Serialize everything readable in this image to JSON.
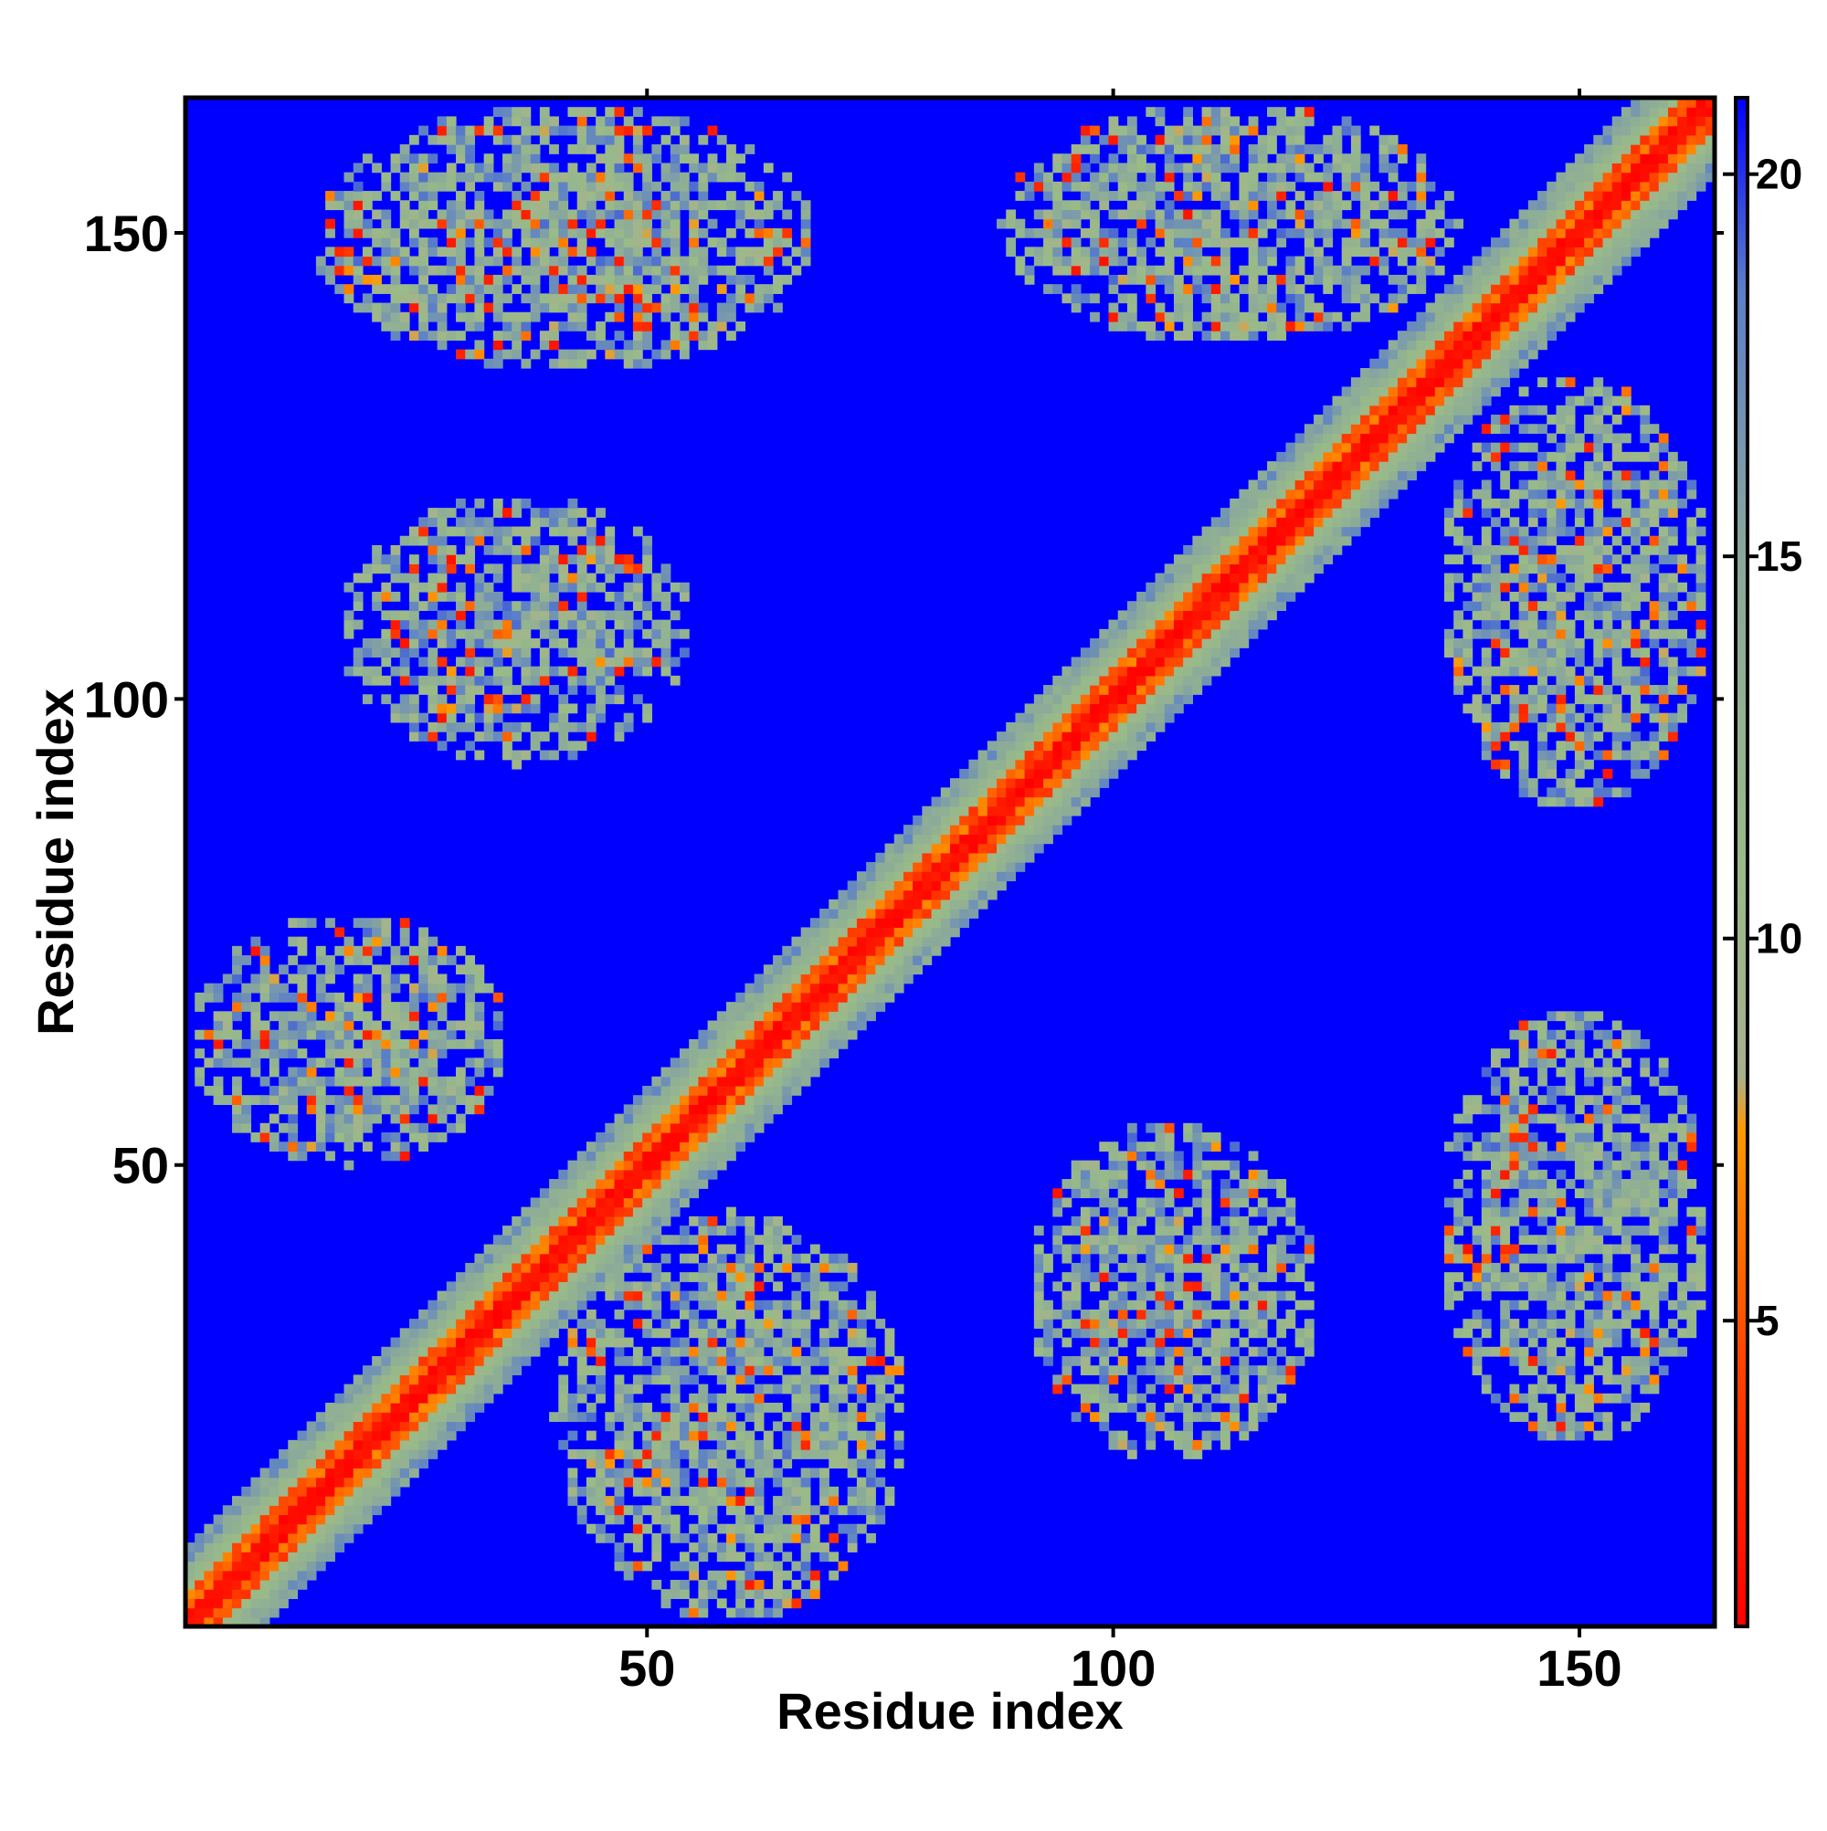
{
  "chart_data": {
    "type": "heatmap",
    "title": "",
    "xlabel": "Residue index",
    "ylabel": "Residue index",
    "n_residues": 164,
    "xlim": [
      1,
      164
    ],
    "ylim": [
      1,
      164
    ],
    "x_ticks": [
      50,
      100,
      150
    ],
    "y_ticks": [
      50,
      100,
      150
    ],
    "colorbar": {
      "ticks": [
        5,
        10,
        15,
        20
      ],
      "range": [
        1,
        21
      ],
      "stops": [
        {
          "value": 1,
          "color": "#ff0000"
        },
        {
          "value": 4.5,
          "color": "#ff4400"
        },
        {
          "value": 7.5,
          "color": "#ff9900"
        },
        {
          "value": 8.2,
          "color": "#a8b08c"
        },
        {
          "value": 11,
          "color": "#99bb88"
        },
        {
          "value": 15,
          "color": "#8aa89c"
        },
        {
          "value": 18.5,
          "color": "#5a7fc8"
        },
        {
          "value": 21,
          "color": "#0000ff"
        }
      ]
    },
    "background_color": "#0000ff",
    "diagonal_band_halfwidth": 6,
    "contact_regions": [
      {
        "x": [
          1,
          38
        ],
        "y": [
          1,
          38
        ],
        "kind": "diagonal"
      },
      {
        "x": [
          1,
          35
        ],
        "y": [
          50,
          77
        ],
        "kind": "off-diagonal"
      },
      {
        "x": [
          40,
          78
        ],
        "y": [
          1,
          45
        ],
        "kind": "off-diagonal"
      },
      {
        "x": [
          14,
          68
        ],
        "y": [
          135,
          164
        ],
        "kind": "off-diagonal"
      },
      {
        "x": [
          88,
          137
        ],
        "y": [
          138,
          164
        ],
        "kind": "off-diagonal"
      },
      {
        "x": [
          135,
          164
        ],
        "y": [
          88,
          135
        ],
        "kind": "off-diagonal"
      },
      {
        "x": [
          17,
          55
        ],
        "y": [
          93,
          122
        ],
        "kind": "off-diagonal"
      },
      {
        "x": [
          91,
          122
        ],
        "y": [
          18,
          55
        ],
        "kind": "off-diagonal"
      },
      {
        "x": [
          135,
          164
        ],
        "y": [
          20,
          67
        ],
        "kind": "off-diagonal"
      }
    ]
  }
}
